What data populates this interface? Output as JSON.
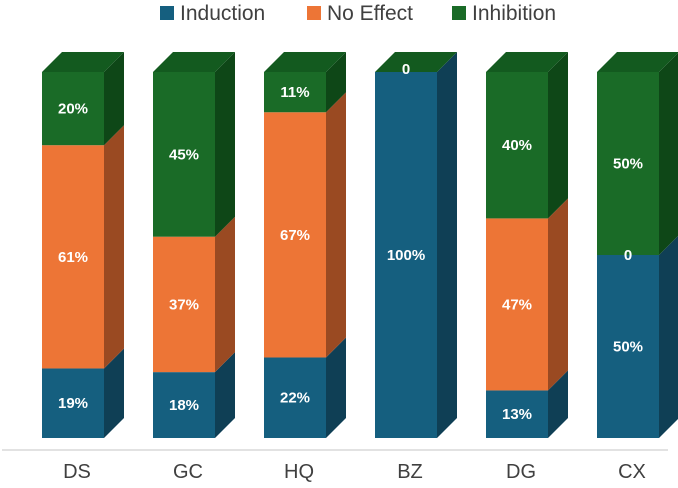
{
  "chart_data": {
    "type": "bar",
    "stacked": true,
    "percent": true,
    "style": "3d-column",
    "categories": [
      "DS",
      "GC",
      "HQ",
      "BZ",
      "DG",
      "CX"
    ],
    "series": [
      {
        "name": "Induction",
        "values": [
          19,
          18,
          22,
          100,
          13,
          50
        ],
        "labels": [
          "19%",
          "18%",
          "22%",
          "100%",
          "13%",
          "50%"
        ],
        "color": "#155f7f",
        "side": "#0f3f55"
      },
      {
        "name": "No Effect",
        "values": [
          61,
          37,
          67,
          0,
          47,
          0
        ],
        "labels": [
          "61%",
          "37%",
          "67%",
          "",
          "47%",
          "0"
        ],
        "color": "#ed7536",
        "side": "#9a4a22"
      },
      {
        "name": "Inhibition",
        "values": [
          20,
          45,
          11,
          0,
          40,
          50
        ],
        "labels": [
          "20%",
          "45%",
          "11%",
          "0",
          "40%",
          "50%"
        ],
        "color": "#1a6b27",
        "side": "#0e4717"
      }
    ],
    "top_color": "#135a1f",
    "ylim": [
      0,
      100
    ],
    "legend": "top",
    "grid": false,
    "axis_line_color": "#d9d9d9"
  }
}
